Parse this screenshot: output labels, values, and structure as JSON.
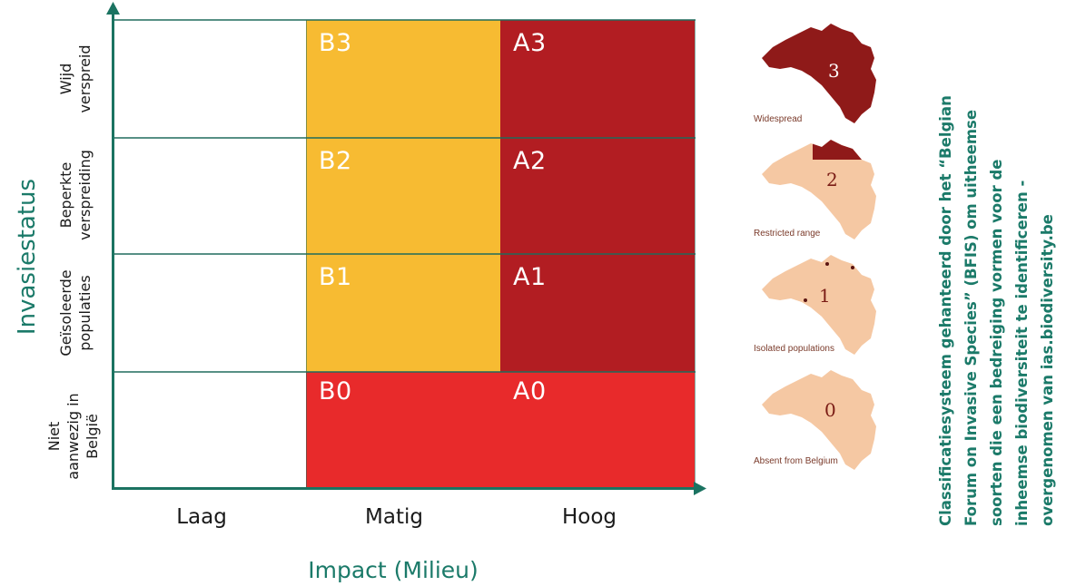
{
  "y_axis_title": "Invasiestatus",
  "x_axis_title": "Impact (Milieu)",
  "x_categories": [
    "Laag",
    "Matig",
    "Hoog"
  ],
  "y_rows": [
    {
      "line1": "Wijd",
      "line2": "verspreid",
      "line3": ""
    },
    {
      "line1": "Beperkte",
      "line2": "verspreiding",
      "line3": ""
    },
    {
      "line1": "Geïsoleerde",
      "line2": "populaties",
      "line3": ""
    },
    {
      "line1": "Niet",
      "line2": "aanwezig in",
      "line3": "België"
    }
  ],
  "cells": {
    "B3": "B3",
    "A3": "A3",
    "B2": "B2",
    "A2": "A2",
    "B1": "B1",
    "A1": "A1",
    "B0": "B0",
    "A0": "A0"
  },
  "colors": {
    "axis": "#1b7361",
    "yellow": "#f7bb32",
    "dark_red": "#b21d22",
    "bright_red": "#e82a2b",
    "map_dark": "#8f1a19",
    "map_light": "#f5c8a3"
  },
  "maps": [
    {
      "number": "3",
      "caption": "Widespread"
    },
    {
      "number": "2",
      "caption": "Restricted range"
    },
    {
      "number": "1",
      "caption": "Isolated populations"
    },
    {
      "number": "0",
      "caption": "Absent from Belgium"
    }
  ],
  "side_text": {
    "line1": "Classificatiesysteem gehanteerd door het “Belgian",
    "line2": "Forum on Invasive Species” (BFIS) om uitheemse",
    "line3": "soorten die een bedreiging vormen voor de",
    "line4": "inheemse biodiversiteit te identificeren -",
    "line5": "overgenomen van ias.biodiversity.be"
  }
}
